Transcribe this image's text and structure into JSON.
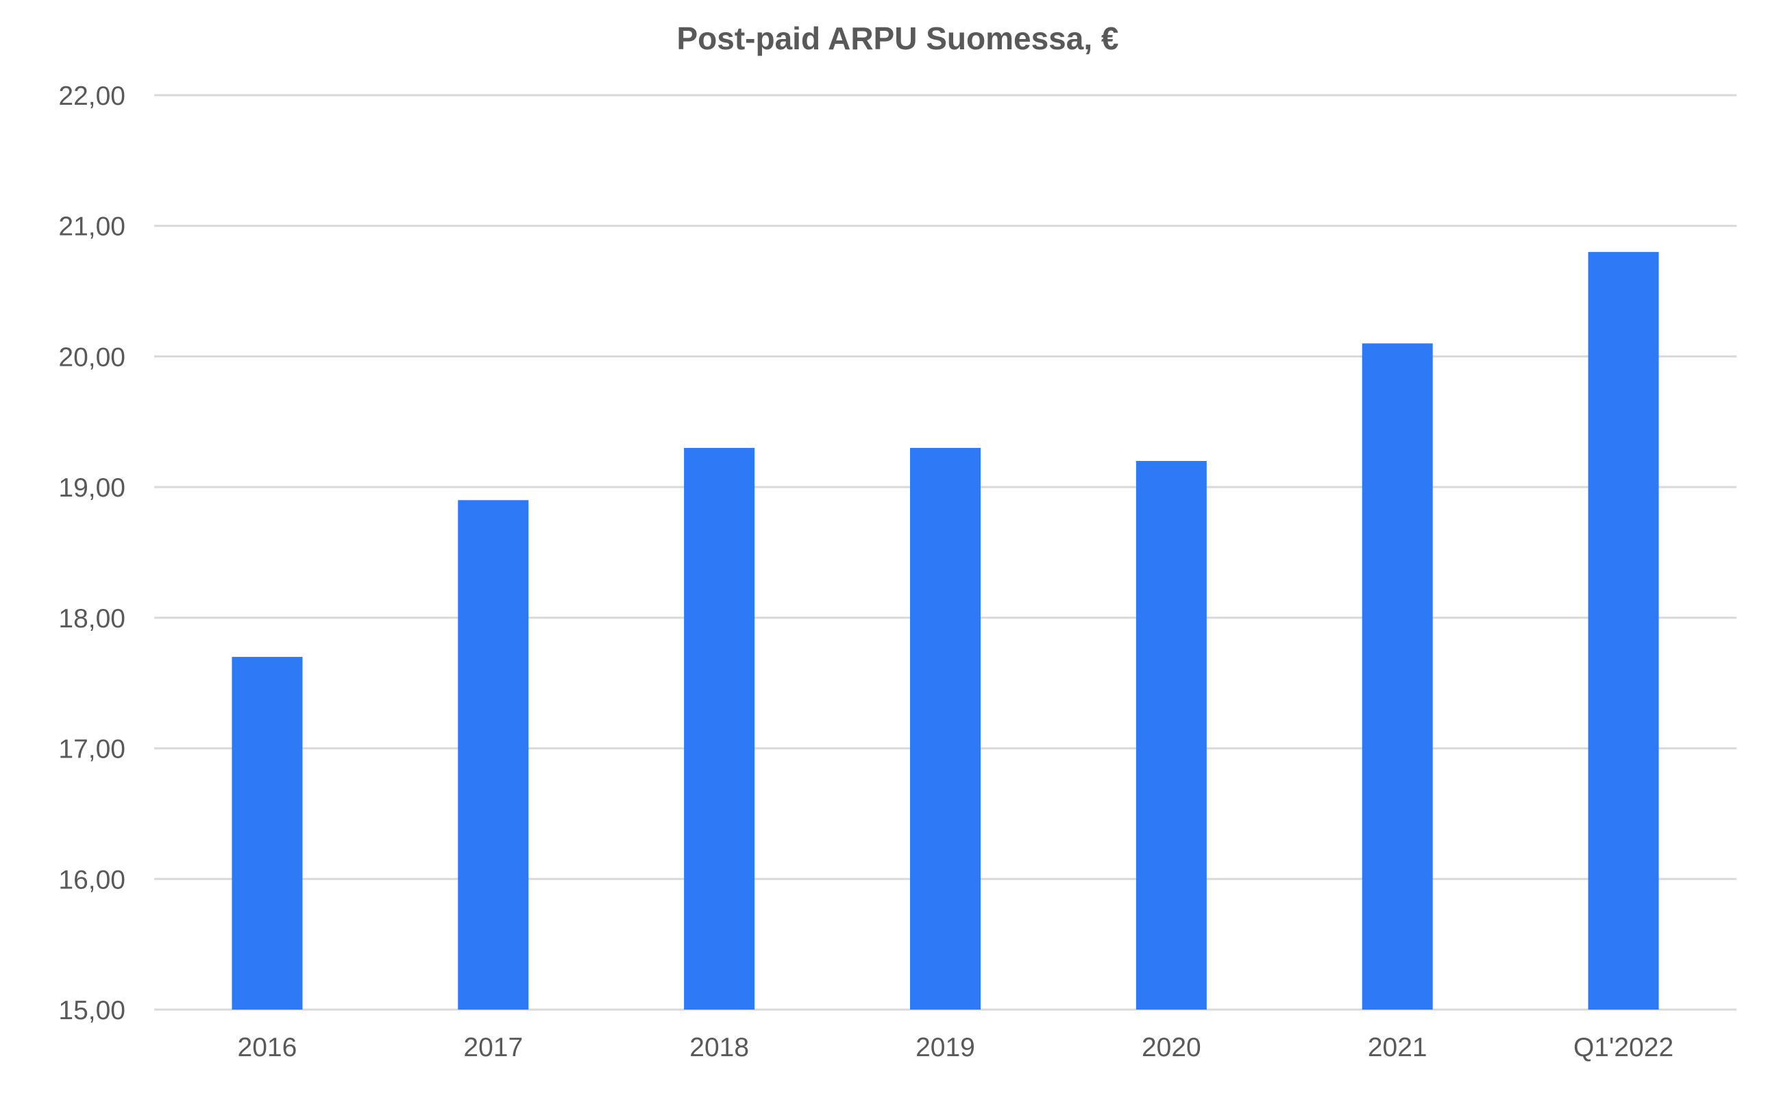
{
  "chart_data": {
    "type": "bar",
    "title": "Post-paid ARPU Suomessa, €",
    "xlabel": "",
    "ylabel": "",
    "categories": [
      "2016",
      "2017",
      "2018",
      "2019",
      "2020",
      "2021",
      "Q1'2022"
    ],
    "values": [
      17.7,
      18.9,
      19.3,
      19.3,
      19.2,
      20.1,
      20.8
    ],
    "ylim": [
      15,
      22
    ],
    "yticks": [
      15,
      16,
      17,
      18,
      19,
      20,
      21,
      22
    ],
    "ytick_labels": [
      "15,00",
      "16,00",
      "17,00",
      "18,00",
      "19,00",
      "20,00",
      "21,00",
      "22,00"
    ],
    "grid": true,
    "legend": "none",
    "bar_color": "#2e79f5",
    "grid_color": "#d9d9d9",
    "text_color": "#595959"
  }
}
